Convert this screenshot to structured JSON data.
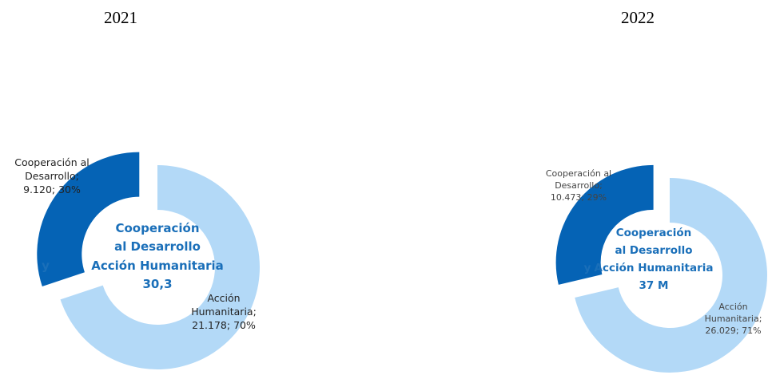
{
  "chart_data": [
    {
      "type": "donut",
      "title": "2021",
      "categories": [
        "Cooperación al Desarrollo",
        "Acción Humanitaria"
      ],
      "values": [
        9120,
        21178
      ],
      "value_labels": [
        "9.120",
        "21.178"
      ],
      "percentages": [
        30,
        70
      ],
      "percentage_labels": [
        "30%",
        "70%"
      ],
      "label_separator": "; ",
      "colors": [
        "#0563b5",
        "#b3d9f7"
      ],
      "center_text": [
        "Cooperación",
        "al Desarrollo",
        "y",
        "Acción Humanitaria",
        "30,3"
      ]
    },
    {
      "type": "donut",
      "title": "2022",
      "categories": [
        "Cooperación al Desarrollo",
        "Acción Humanitaria"
      ],
      "values": [
        10473,
        26029
      ],
      "value_labels": [
        "10.473",
        "26.029"
      ],
      "percentages": [
        29,
        71
      ],
      "percentage_labels": [
        "29%",
        "71%"
      ],
      "label_separator": "; ",
      "colors": [
        "#0563b5",
        "#b3d9f7"
      ],
      "center_text": [
        "Cooperación",
        "al Desarrollo",
        "y",
        "Acción Humanitaria",
        "37 M"
      ]
    }
  ]
}
